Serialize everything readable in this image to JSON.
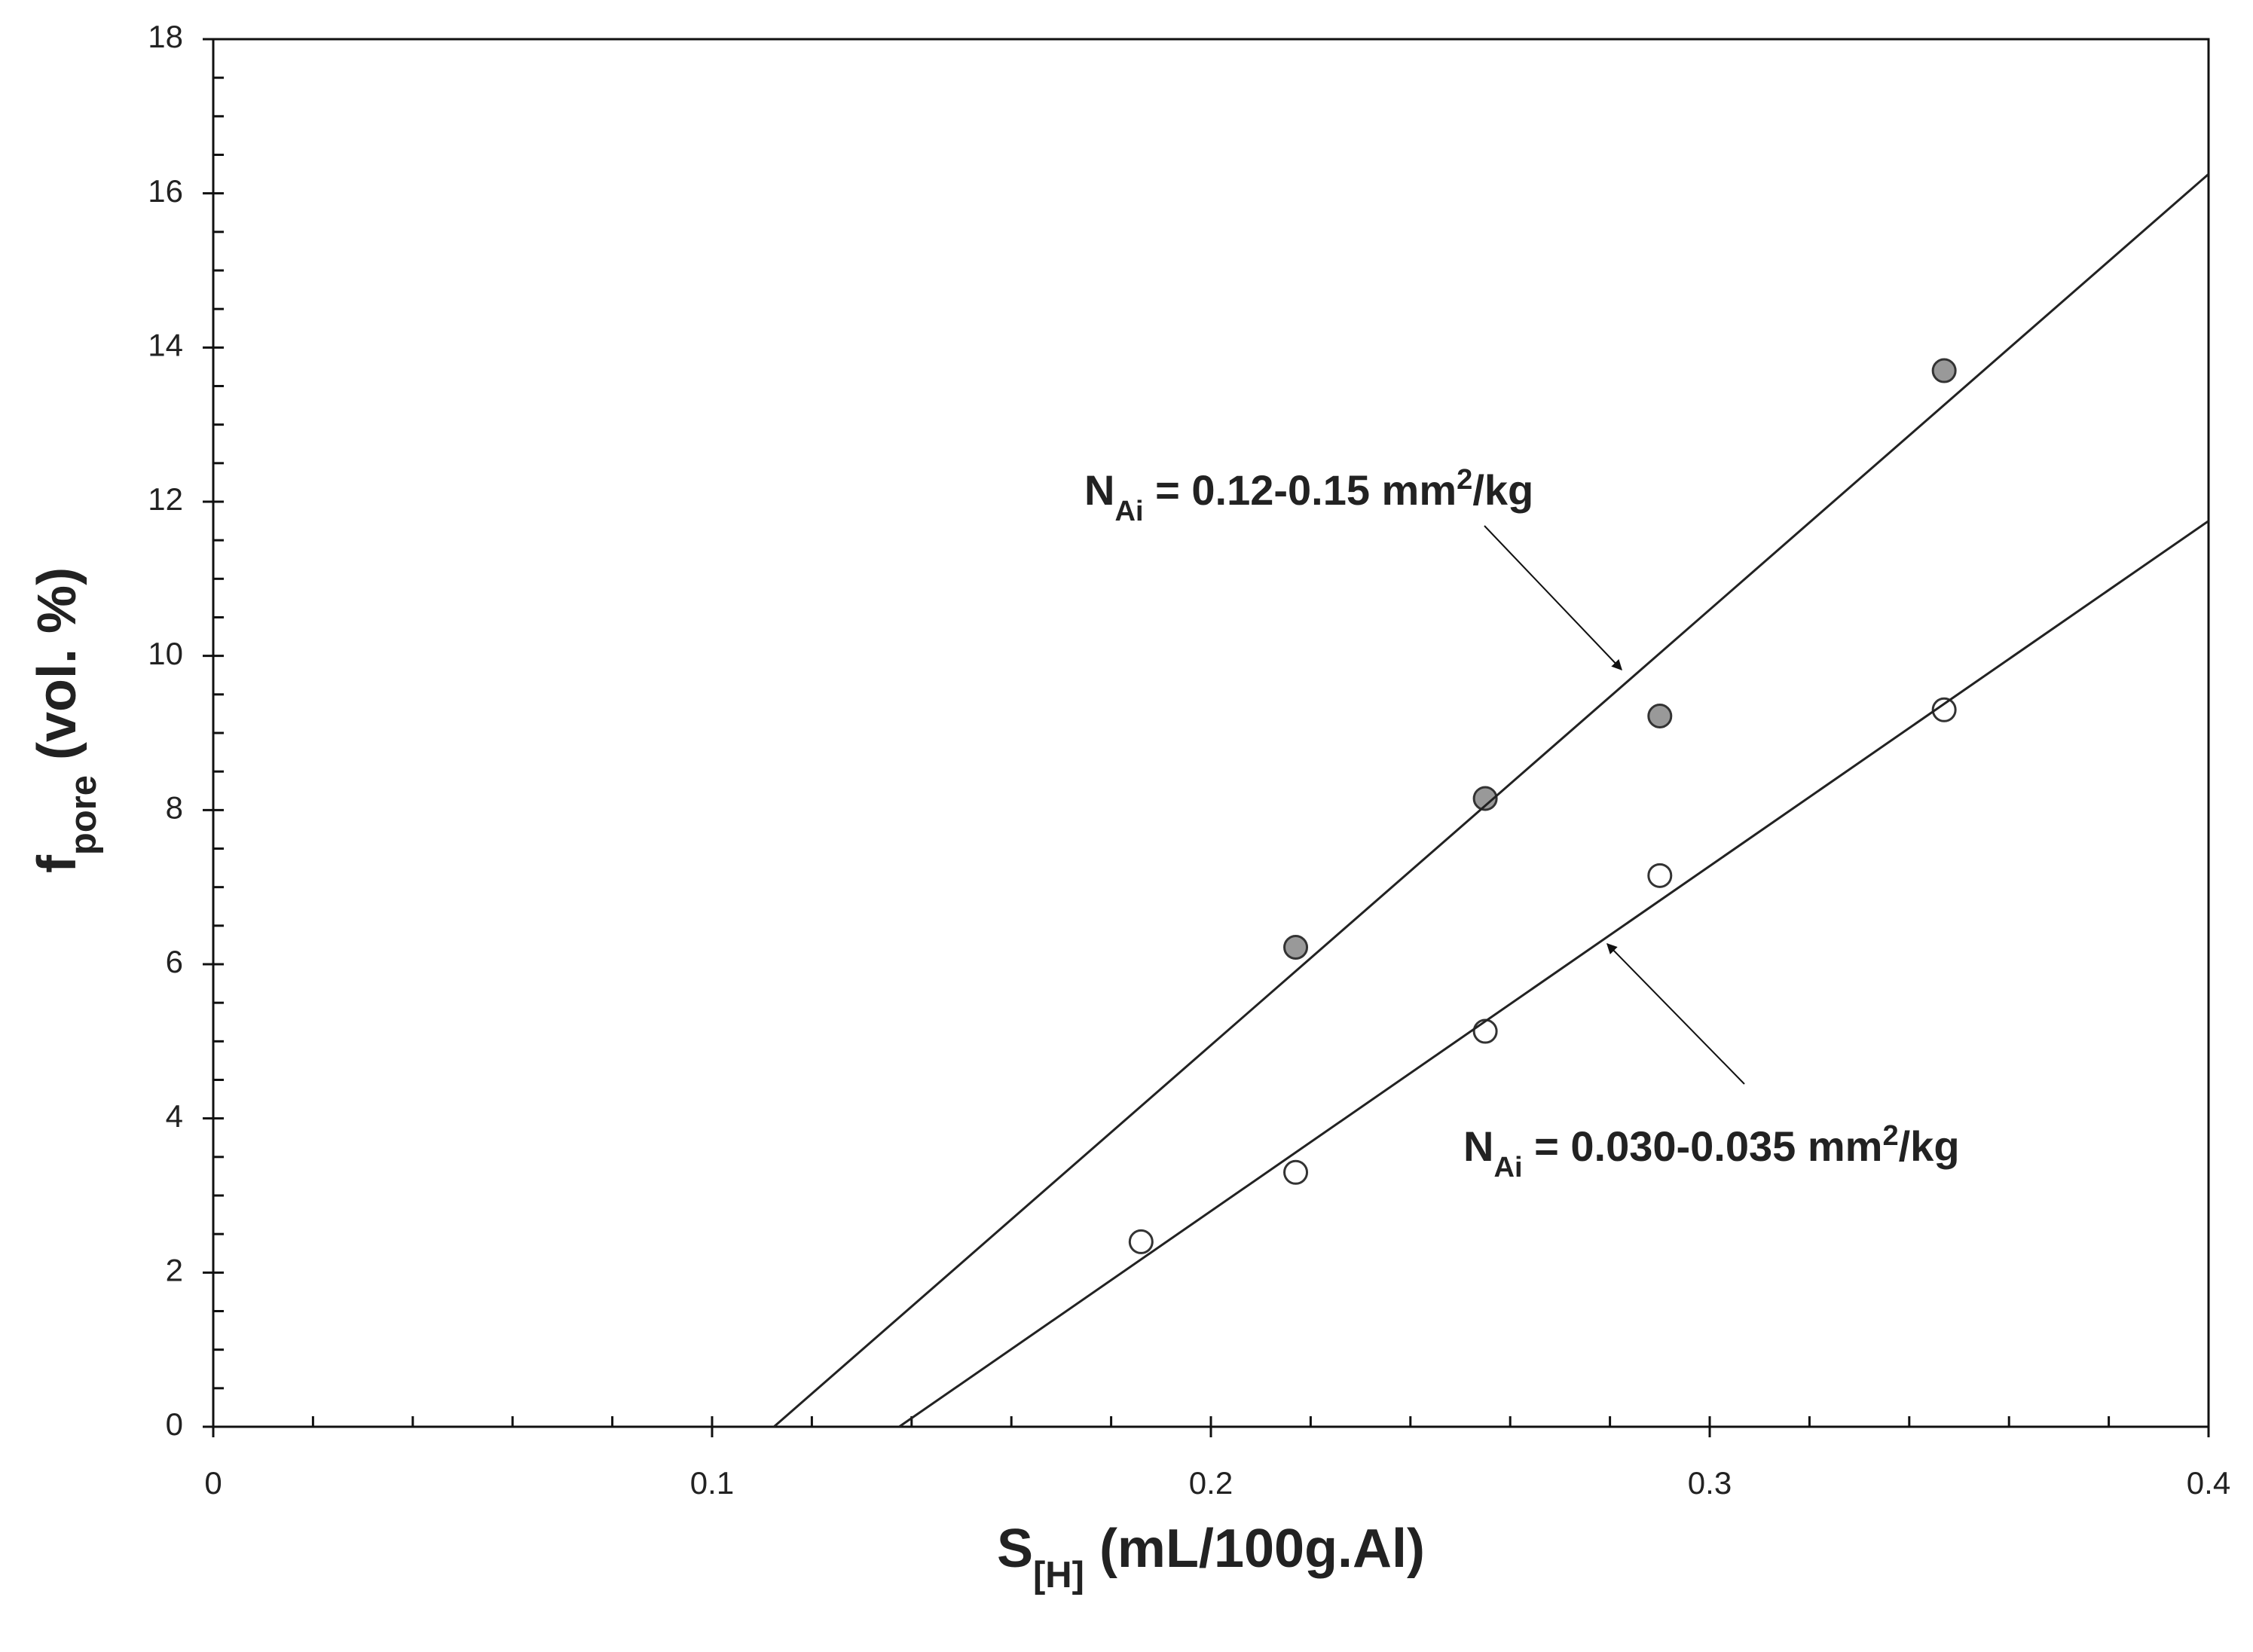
{
  "chart_data": {
    "type": "scatter",
    "xlabel": [
      {
        "text": "S"
      },
      {
        "text": "[H]",
        "shift": "sub"
      },
      {
        "text": " (mL/100g.Al)"
      }
    ],
    "ylabel": [
      {
        "text": "f"
      },
      {
        "text": "pore",
        "shift": "sub"
      },
      {
        "text": " (vol. %)"
      }
    ],
    "xlim": [
      0,
      0.4
    ],
    "ylim": [
      0,
      18
    ],
    "xticks": [
      0,
      0.1,
      0.2,
      0.3,
      0.4
    ],
    "yticks": [
      0,
      2,
      4,
      6,
      8,
      10,
      12,
      14,
      16,
      18
    ],
    "xminorticks": [
      0.02,
      0.04,
      0.06,
      0.08,
      0.12,
      0.14,
      0.16,
      0.18,
      0.22,
      0.24,
      0.26,
      0.28,
      0.32,
      0.34,
      0.36,
      0.38
    ],
    "yminorticks": [
      0.5,
      1,
      1.5,
      2.5,
      3,
      3.5,
      4.5,
      5,
      5.5,
      6.5,
      7,
      7.5,
      8.5,
      9,
      9.5,
      10.5,
      11,
      11.5,
      12.5,
      13,
      13.5,
      14.5,
      15,
      15.5,
      16.5,
      17,
      17.5
    ],
    "series": [
      {
        "mode": "markers",
        "color": "#333333",
        "fill": "#999999",
        "x": [
          0.217,
          0.255,
          0.29,
          0.347
        ],
        "values": [
          6.22,
          8.15,
          9.22,
          13.7
        ]
      },
      {
        "mode": "markers",
        "color": "#333333",
        "fill": "#ffffff",
        "x": [
          0.186,
          0.217,
          0.255,
          0.29,
          0.347
        ],
        "values": [
          2.4,
          3.3,
          5.13,
          7.15,
          9.3
        ]
      },
      {
        "mode": "line",
        "color": "#222222",
        "x": [
          0.1124,
          0.4
        ],
        "values": [
          0,
          16.25
        ]
      },
      {
        "mode": "line",
        "color": "#222222",
        "x": [
          0.1375,
          0.4
        ],
        "values": [
          0,
          11.75
        ]
      }
    ],
    "annotations": [
      [
        {
          "text": "N"
        },
        {
          "text": "Ai",
          "shift": "sub"
        },
        {
          "text": " = 0.12-0.15 mm"
        },
        {
          "text": "2",
          "shift": "super"
        },
        {
          "text": "/kg"
        }
      ],
      [
        {
          "text": "N"
        },
        {
          "text": "Ai",
          "shift": "sub"
        },
        {
          "text": " = 0.030-0.035 mm"
        },
        {
          "text": "2",
          "shift": "super"
        },
        {
          "text": "/kg"
        }
      ]
    ]
  }
}
